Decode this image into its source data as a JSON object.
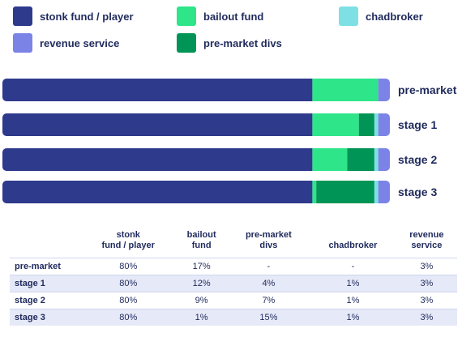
{
  "legend": [
    {
      "label": "stonk fund / player",
      "color": "#2e3a8c"
    },
    {
      "label": "bailout fund",
      "color": "#2ee58a"
    },
    {
      "label": "chadbroker",
      "color": "#7ee0e5"
    },
    {
      "label": "revenue service",
      "color": "#7b84e6"
    },
    {
      "label": "pre-market divs",
      "color": "#009456"
    }
  ],
  "chart_data": {
    "type": "bar",
    "orientation": "horizontal",
    "stacked": true,
    "categories": [
      "pre-market",
      "stage 1",
      "stage 2",
      "stage 3"
    ],
    "series": [
      {
        "name": "stonk fund / player",
        "color": "#2e3a8c",
        "values": [
          80,
          80,
          80,
          80
        ]
      },
      {
        "name": "bailout fund",
        "color": "#2ee58a",
        "values": [
          17,
          12,
          9,
          1
        ]
      },
      {
        "name": "pre-market divs",
        "color": "#009456",
        "values": [
          0,
          4,
          7,
          15
        ]
      },
      {
        "name": "chadbroker",
        "color": "#7ee0e5",
        "values": [
          0,
          1,
          1,
          1
        ]
      },
      {
        "name": "revenue service",
        "color": "#7b84e6",
        "values": [
          3,
          3,
          3,
          3
        ]
      }
    ],
    "xlim": [
      0,
      100
    ],
    "grid": false,
    "legend_position": "top"
  },
  "table": {
    "headers": [
      "",
      "stonk\nfund / player",
      "bailout\nfund",
      "pre-market\ndivs",
      "chadbroker",
      "revenue\nservice"
    ],
    "rows": [
      [
        "pre-market",
        "80%",
        "17%",
        "-",
        "-",
        "3%"
      ],
      [
        "stage 1",
        "80%",
        "12%",
        "4%",
        "1%",
        "3%"
      ],
      [
        "stage 2",
        "80%",
        "9%",
        "7%",
        "1%",
        "3%"
      ],
      [
        "stage 3",
        "80%",
        "1%",
        "15%",
        "1%",
        "3%"
      ]
    ]
  }
}
